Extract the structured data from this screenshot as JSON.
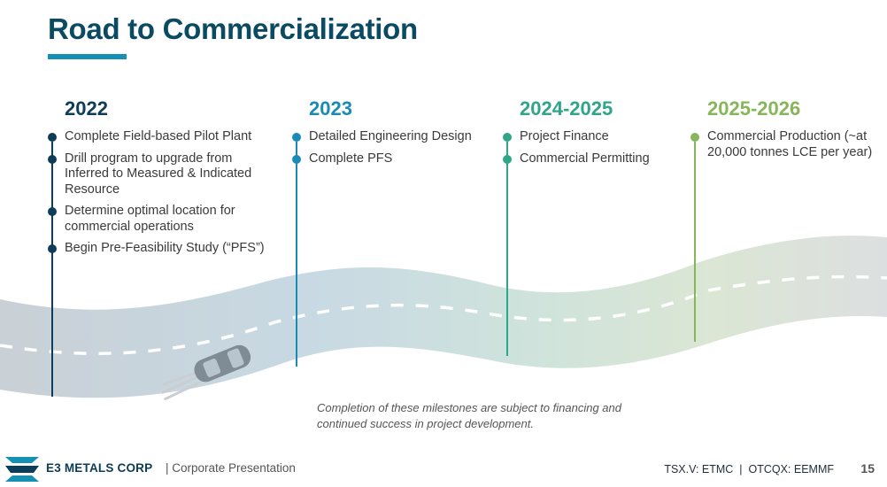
{
  "title": "Road to Commercialization",
  "milestones": [
    {
      "year": "2022",
      "color": "#0e3d57",
      "items": [
        "Complete Field-based Pilot Plant",
        "Drill program to upgrade from Inferred to Measured & Indicated Resource",
        "Determine optimal location for commercial operations",
        "Begin Pre-Feasibility Study (“PFS”)"
      ]
    },
    {
      "year": "2023",
      "color": "#1a8bb5",
      "items": [
        "Detailed Engineering Design",
        "Complete PFS"
      ]
    },
    {
      "year": "2024-2025",
      "color": "#2fa58a",
      "items": [
        "Project Finance",
        "Commercial Permitting"
      ]
    },
    {
      "year": "2025-2026",
      "color": "#87b65a",
      "items": [
        "Commercial Production (~at 20,000 tonnes LCE per year)"
      ]
    }
  ],
  "note": "Completion of these milestones are subject to financing and continued success in project development.",
  "footer": {
    "brand": "E3 METALS CORP",
    "presentation": "| Corporate Presentation",
    "ticker": "TSX.V: ETMC  |  OTCQX: EEMMF",
    "page": "15"
  }
}
